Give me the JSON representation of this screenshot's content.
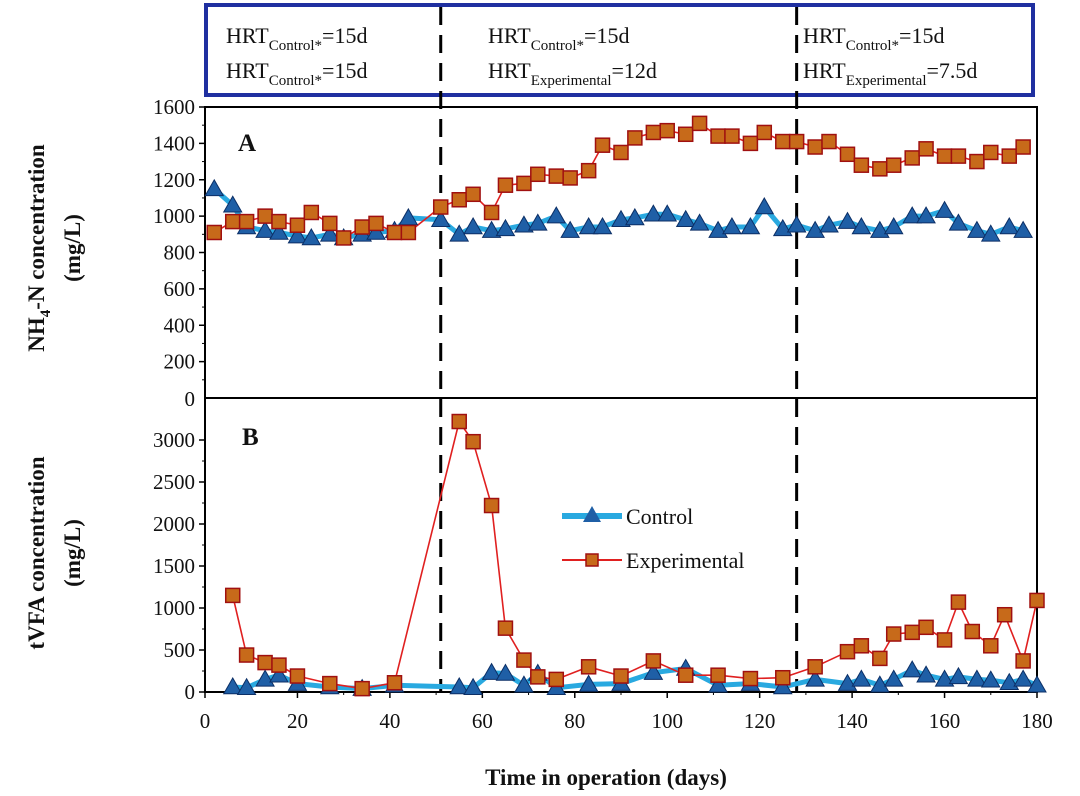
{
  "colors": {
    "control_line": "#29a9e0",
    "control_marker": "#1f5fa6",
    "experimental_line": "#e02020",
    "experimental_marker": "#c76a1a",
    "experimental_marker_edge": "#a01010",
    "header_border": "#1f2fa0",
    "axis": "#000000"
  },
  "header": {
    "sections": [
      {
        "line1": {
          "base": "HRT",
          "sub": "Control*",
          "rest": "=15d"
        },
        "line2": {
          "base": "HRT",
          "sub": "Control*",
          "rest": "=15d"
        }
      },
      {
        "line1": {
          "base": "HRT",
          "sub": "Control*",
          "rest": "=15d"
        },
        "line2": {
          "base": "HRT",
          "sub": "Experimental",
          "rest": "=12d"
        }
      },
      {
        "line1": {
          "base": "HRT",
          "sub": "Control*",
          "rest": "=15d"
        },
        "line2": {
          "base": "HRT",
          "sub": "Experimental",
          "rest": "=7.5d"
        }
      }
    ]
  },
  "chart_data": [
    {
      "type": "line",
      "panel_label": "A",
      "ylabel": {
        "base": "NH",
        "sub": "4",
        "rest": "-N concentration",
        "unit": "(mg/L)"
      },
      "ylim": [
        0,
        1600
      ],
      "yticks": [
        0,
        200,
        400,
        600,
        800,
        1000,
        1200,
        1400,
        1600
      ],
      "xlim": [
        0,
        180
      ],
      "phase_boundaries_days": [
        51,
        128
      ],
      "series": [
        {
          "name": "Control",
          "x": [
            2,
            6,
            9,
            13,
            16,
            20,
            23,
            27,
            30,
            34,
            37,
            41,
            44,
            51,
            55,
            58,
            62,
            65,
            69,
            72,
            76,
            79,
            83,
            86,
            90,
            93,
            97,
            100,
            104,
            107,
            111,
            114,
            118,
            121,
            125,
            128,
            132,
            135,
            139,
            142,
            146,
            149,
            153,
            156,
            160,
            163,
            167,
            170,
            174,
            177
          ],
          "values": [
            1150,
            1060,
            940,
            920,
            910,
            890,
            880,
            900,
            880,
            900,
            910,
            920,
            990,
            980,
            900,
            940,
            920,
            930,
            950,
            960,
            1000,
            920,
            940,
            940,
            980,
            990,
            1010,
            1010,
            980,
            960,
            920,
            940,
            940,
            1050,
            930,
            950,
            920,
            950,
            970,
            940,
            920,
            940,
            1000,
            1000,
            1030,
            960,
            920,
            900,
            940,
            920
          ]
        },
        {
          "name": "Experimental",
          "x": [
            2,
            6,
            9,
            13,
            16,
            20,
            23,
            27,
            30,
            34,
            37,
            41,
            44,
            51,
            55,
            58,
            62,
            65,
            69,
            72,
            76,
            79,
            83,
            86,
            90,
            93,
            97,
            100,
            104,
            107,
            111,
            114,
            118,
            121,
            125,
            128,
            132,
            135,
            139,
            142,
            146,
            149,
            153,
            156,
            160,
            163,
            167,
            170,
            174,
            177
          ],
          "values": [
            910,
            970,
            970,
            1000,
            970,
            950,
            1020,
            960,
            880,
            940,
            960,
            910,
            910,
            1050,
            1090,
            1120,
            1020,
            1170,
            1180,
            1230,
            1220,
            1210,
            1250,
            1390,
            1350,
            1430,
            1460,
            1470,
            1450,
            1510,
            1440,
            1440,
            1400,
            1460,
            1410,
            1410,
            1380,
            1410,
            1340,
            1280,
            1260,
            1280,
            1320,
            1370,
            1330,
            1330,
            1300,
            1350,
            1330,
            1380
          ]
        }
      ]
    },
    {
      "type": "line",
      "panel_label": "B",
      "ylabel": {
        "base": "tVFA concentration",
        "sub": "",
        "rest": "",
        "unit": "(mg/L)"
      },
      "ylim": [
        0,
        3500
      ],
      "yticks": [
        0,
        500,
        1000,
        1500,
        2000,
        2500,
        3000
      ],
      "xlim": [
        0,
        180
      ],
      "xticks": [
        0,
        20,
        40,
        60,
        80,
        100,
        120,
        140,
        160,
        180
      ],
      "xlabel": "Time in operation (days)",
      "phase_boundaries_days": [
        51,
        128
      ],
      "series": [
        {
          "name": "Control",
          "x": [
            6,
            9,
            13,
            16,
            20,
            27,
            34,
            41,
            55,
            58,
            62,
            65,
            69,
            72,
            76,
            83,
            90,
            97,
            104,
            111,
            118,
            125,
            132,
            139,
            142,
            146,
            149,
            153,
            156,
            160,
            163,
            167,
            170,
            174,
            177,
            180
          ],
          "values": [
            60,
            50,
            150,
            200,
            100,
            60,
            40,
            80,
            60,
            50,
            230,
            220,
            80,
            220,
            50,
            90,
            100,
            230,
            280,
            80,
            100,
            60,
            150,
            100,
            150,
            80,
            150,
            260,
            200,
            150,
            180,
            150,
            140,
            110,
            150,
            80
          ]
        },
        {
          "name": "Experimental",
          "x": [
            6,
            9,
            13,
            16,
            20,
            27,
            34,
            41,
            55,
            58,
            62,
            65,
            69,
            72,
            76,
            83,
            90,
            97,
            104,
            111,
            118,
            125,
            132,
            139,
            142,
            146,
            149,
            153,
            156,
            160,
            163,
            166,
            170,
            173,
            177,
            180
          ],
          "values": [
            1150,
            440,
            350,
            320,
            190,
            100,
            40,
            110,
            3220,
            2980,
            2220,
            760,
            380,
            180,
            150,
            300,
            190,
            370,
            200,
            200,
            160,
            170,
            300,
            480,
            550,
            400,
            690,
            710,
            770,
            620,
            1070,
            720,
            550,
            920,
            370,
            1090
          ]
        }
      ],
      "legend": {
        "position": "center",
        "entries": [
          "Control",
          "Experimental"
        ]
      }
    }
  ]
}
